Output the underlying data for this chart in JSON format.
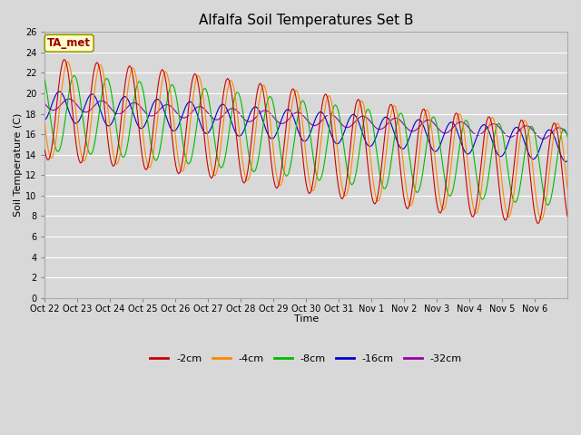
{
  "title": "Alfalfa Soil Temperatures Set B",
  "ylabel": "Soil Temperature (C)",
  "xlabel": "Time",
  "annotation": "TA_met",
  "xlabels": [
    "Oct 22",
    "Oct 23",
    "Oct 24",
    "Oct 25",
    "Oct 26",
    "Oct 27",
    "Oct 28",
    "Oct 29",
    "Oct 30",
    "Oct 31",
    "Nov 1",
    "Nov 2",
    "Nov 3",
    "Nov 4",
    "Nov 5",
    "Nov 6"
  ],
  "ylim": [
    0,
    26
  ],
  "yticks": [
    0,
    2,
    4,
    6,
    8,
    10,
    12,
    14,
    16,
    18,
    20,
    22,
    24,
    26
  ],
  "colors": {
    "-2cm": "#cc0000",
    "-4cm": "#ff8800",
    "-8cm": "#00bb00",
    "-16cm": "#0000cc",
    "-32cm": "#9900aa"
  },
  "legend_labels": [
    "-2cm",
    "-4cm",
    "-8cm",
    "-16cm",
    "-32cm"
  ],
  "bg_color": "#d8d8d8",
  "title_fontsize": 11,
  "axis_fontsize": 8,
  "tick_fontsize": 7
}
